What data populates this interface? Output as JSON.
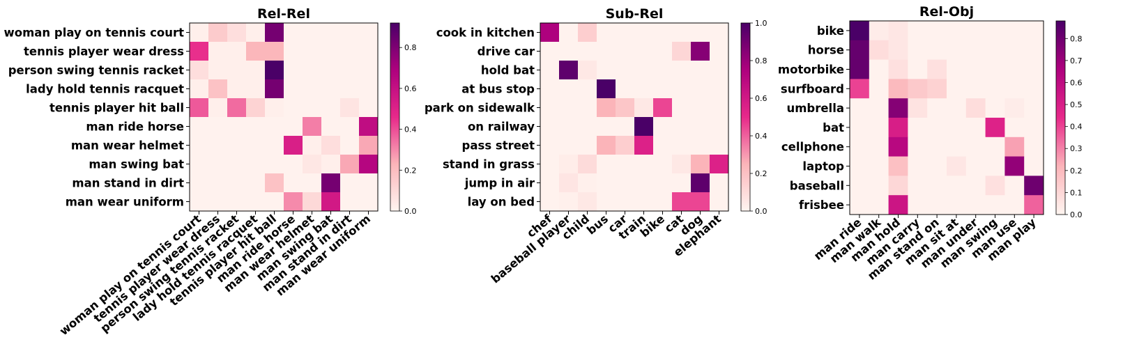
{
  "colors": {
    "low": "#fff5f0",
    "mid": "#e7298a",
    "high": "#4a0067",
    "frame": "#000000"
  },
  "chart_data": [
    {
      "type": "heatmap",
      "title": "Rel-Rel",
      "rows": [
        "woman play on tennis court",
        "tennis player wear dress",
        "person swing tennis racket",
        "lady hold tennis racquet",
        "tennis player hit ball",
        "man ride horse",
        "man wear helmet",
        "man swing bat",
        "man stand in dirt",
        "man wear uniform"
      ],
      "columns": [
        "woman play on tennis court",
        "tennis player wear dress",
        "person swing tennis racket",
        "lady hold tennis racquet",
        "tennis player hit ball",
        "man ride horse",
        "man wear helmet",
        "man swing bat",
        "man stand in dirt",
        "man wear uniform"
      ],
      "vmin": 0,
      "vmax": 0.92,
      "colorbar_ticks": [
        "0.0",
        "0.2",
        "0.4",
        "0.6",
        "0.8"
      ],
      "colorbar_tick_values": [
        0,
        0.2,
        0.4,
        0.6,
        0.8
      ],
      "values": [
        [
          0.02,
          0.15,
          0.08,
          0.02,
          0.82,
          0.01,
          0.01,
          0.01,
          0.01,
          0.01
        ],
        [
          0.45,
          0.02,
          0.02,
          0.22,
          0.22,
          0.01,
          0.01,
          0.01,
          0.01,
          0.01
        ],
        [
          0.08,
          0.02,
          0.02,
          0.02,
          0.92,
          0.01,
          0.01,
          0.01,
          0.01,
          0.01
        ],
        [
          0.02,
          0.18,
          0.02,
          0.02,
          0.82,
          0.01,
          0.01,
          0.01,
          0.01,
          0.01
        ],
        [
          0.38,
          0.02,
          0.35,
          0.12,
          0.02,
          0.01,
          0.01,
          0.01,
          0.06,
          0.01
        ],
        [
          0.01,
          0.01,
          0.01,
          0.01,
          0.01,
          0.01,
          0.32,
          0.01,
          0.01,
          0.62
        ],
        [
          0.01,
          0.01,
          0.01,
          0.01,
          0.01,
          0.52,
          0.02,
          0.08,
          0.01,
          0.25
        ],
        [
          0.01,
          0.01,
          0.01,
          0.01,
          0.01,
          0.01,
          0.05,
          0.02,
          0.25,
          0.66
        ],
        [
          0.01,
          0.01,
          0.01,
          0.01,
          0.18,
          0.01,
          0.01,
          0.82,
          0.01,
          0.01
        ],
        [
          0.01,
          0.01,
          0.01,
          0.01,
          0.01,
          0.3,
          0.1,
          0.55,
          0.01,
          0.01
        ]
      ]
    },
    {
      "type": "heatmap",
      "title": "Sub-Rel",
      "rows": [
        "cook in kitchen",
        "drive car",
        "hold bat",
        "at bus stop",
        "park on sidewalk",
        "on railway",
        "pass street",
        "stand in grass",
        "jump in air",
        "lay on bed"
      ],
      "columns": [
        "chef",
        "baseball player",
        "child",
        "bus",
        "car",
        "train",
        "bike",
        "cat",
        "dog",
        "elephant"
      ],
      "vmin": 0,
      "vmax": 1.0,
      "colorbar_ticks": [
        "0.0",
        "0.2",
        "0.4",
        "0.6",
        "0.8",
        "1.0"
      ],
      "colorbar_tick_values": [
        0,
        0.2,
        0.4,
        0.6,
        0.8,
        1.0
      ],
      "values": [
        [
          0.75,
          0.01,
          0.15,
          0.01,
          0.01,
          0.01,
          0.01,
          0.01,
          0.01,
          0.01
        ],
        [
          0.01,
          0.01,
          0.01,
          0.01,
          0.01,
          0.01,
          0.01,
          0.12,
          0.85,
          0.01
        ],
        [
          0.01,
          0.95,
          0.05,
          0.01,
          0.01,
          0.01,
          0.01,
          0.01,
          0.01,
          0.01
        ],
        [
          0.01,
          0.01,
          0.01,
          1.0,
          0.01,
          0.01,
          0.01,
          0.01,
          0.01,
          0.01
        ],
        [
          0.01,
          0.01,
          0.01,
          0.25,
          0.18,
          0.05,
          0.45,
          0.01,
          0.01,
          0.01
        ],
        [
          0.01,
          0.01,
          0.01,
          0.01,
          0.01,
          1.0,
          0.01,
          0.01,
          0.01,
          0.01
        ],
        [
          0.01,
          0.01,
          0.01,
          0.25,
          0.15,
          0.55,
          0.01,
          0.01,
          0.01,
          0.01
        ],
        [
          0.01,
          0.03,
          0.1,
          0.01,
          0.01,
          0.01,
          0.01,
          0.05,
          0.25,
          0.55
        ],
        [
          0.01,
          0.06,
          0.02,
          0.01,
          0.01,
          0.01,
          0.01,
          0.01,
          0.95,
          0.01
        ],
        [
          0.01,
          0.02,
          0.05,
          0.01,
          0.01,
          0.01,
          0.01,
          0.45,
          0.45,
          0.01
        ]
      ]
    },
    {
      "type": "heatmap",
      "title": "Rel-Obj",
      "rows": [
        "bike",
        "horse",
        "motorbike",
        "surfboard",
        "umbrella",
        "bat",
        "cellphone",
        "laptop",
        "baseball",
        "frisbee"
      ],
      "columns": [
        "man ride",
        "man walk",
        "man hold",
        "man carry",
        "man stand on",
        "man sit at",
        "man under",
        "man swing",
        "man use",
        "man play"
      ],
      "vmin": 0,
      "vmax": 0.88,
      "colorbar_ticks": [
        "0.0",
        "0.1",
        "0.2",
        "0.3",
        "0.4",
        "0.5",
        "0.6",
        "0.7",
        "0.8"
      ],
      "colorbar_tick_values": [
        0,
        0.1,
        0.2,
        0.3,
        0.4,
        0.5,
        0.6,
        0.7,
        0.8
      ],
      "values": [
        [
          0.88,
          0.03,
          0.05,
          0.01,
          0.01,
          0.01,
          0.01,
          0.01,
          0.01,
          0.01
        ],
        [
          0.82,
          0.08,
          0.05,
          0.01,
          0.01,
          0.01,
          0.01,
          0.01,
          0.01,
          0.01
        ],
        [
          0.82,
          0.01,
          0.07,
          0.01,
          0.07,
          0.01,
          0.01,
          0.01,
          0.01,
          0.01
        ],
        [
          0.4,
          0.01,
          0.2,
          0.15,
          0.12,
          0.01,
          0.01,
          0.01,
          0.01,
          0.01
        ],
        [
          0.01,
          0.01,
          0.75,
          0.06,
          0.01,
          0.01,
          0.08,
          0.01,
          0.03,
          0.01
        ],
        [
          0.01,
          0.01,
          0.5,
          0.01,
          0.01,
          0.01,
          0.01,
          0.48,
          0.01,
          0.01
        ],
        [
          0.01,
          0.01,
          0.62,
          0.01,
          0.01,
          0.01,
          0.01,
          0.01,
          0.25,
          0.01
        ],
        [
          0.01,
          0.01,
          0.18,
          0.01,
          0.01,
          0.05,
          0.01,
          0.01,
          0.72,
          0.01
        ],
        [
          0.01,
          0.01,
          0.1,
          0.01,
          0.01,
          0.01,
          0.01,
          0.07,
          0.01,
          0.8
        ],
        [
          0.01,
          0.01,
          0.55,
          0.01,
          0.01,
          0.01,
          0.01,
          0.01,
          0.01,
          0.35
        ]
      ]
    }
  ]
}
